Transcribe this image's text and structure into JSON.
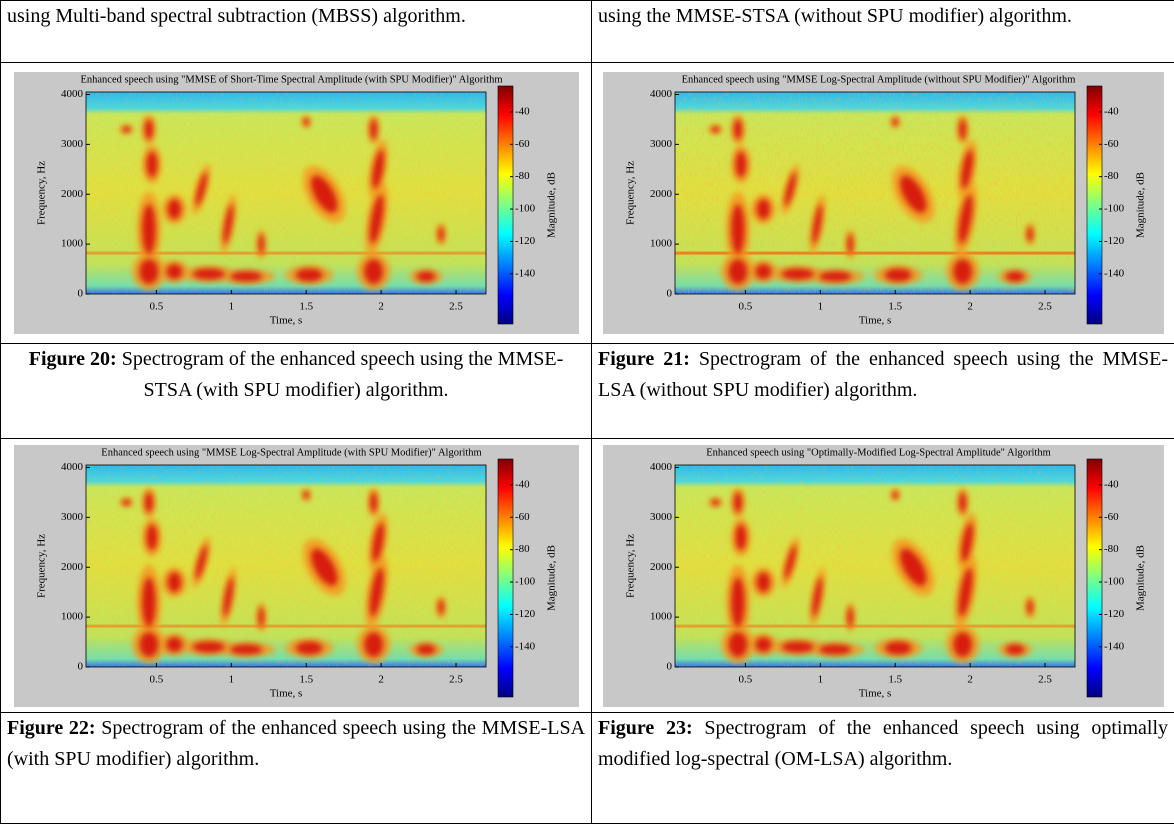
{
  "table": {
    "rows": [
      [
        "using Multi-band spectral subtraction (MBSS) algorithm.",
        "using the MMSE-STSA (without SPU modifier) algorithm."
      ],
      [
        {
          "label": "Figure 20:",
          "text": "Spectrogram of the enhanced speech using the MMSE-STSA (with SPU modifier) algorithm."
        },
        {
          "label": "Figure 21:",
          "text": "Spectrogram of the enhanced speech using the MMSE-LSA (without SPU modifier) algorithm."
        }
      ],
      [
        {
          "label": "Figure 22:",
          "text": "Spectrogram of the enhanced speech using the MMSE-LSA (with SPU modifier) algorithm."
        },
        {
          "label": "Figure 23:",
          "text": "Spectrogram of the enhanced speech using optimally modified log-spectral (OM-LSA) algorithm."
        }
      ]
    ]
  },
  "figures": [
    {
      "title": "Enhanced speech using \"MMSE of Short-Time Spectral Amplitude (with SPU Modifier)\" Algorithm",
      "xlabel": "Time, s",
      "ylabel": "Frequency, Hz",
      "colorbar_label": "Magnitude, dB",
      "xlim": [
        0.03,
        2.7
      ],
      "xticks": [
        0.5,
        1,
        1.5,
        2,
        2.5
      ],
      "ylim": [
        0,
        4050
      ],
      "yticks": [
        0,
        1000,
        2000,
        3000,
        4000
      ],
      "clim": [
        -171,
        -24
      ],
      "cticks": [
        -40,
        -60,
        -80,
        -100,
        -120,
        -140
      ]
    },
    {
      "title": "Enhanced speech using \"MMSE Log-Spectral Amplitude (without SPU Modifier)\" Algorithm",
      "xlabel": "Time, s",
      "ylabel": "Frequency, Hz",
      "colorbar_label": "Magnitude, dB",
      "xlim": [
        0.03,
        2.7
      ],
      "xticks": [
        0.5,
        1,
        1.5,
        2,
        2.5
      ],
      "ylim": [
        0,
        4050
      ],
      "yticks": [
        0,
        1000,
        2000,
        3000,
        4000
      ],
      "clim": [
        -171,
        -24
      ],
      "cticks": [
        -40,
        -60,
        -80,
        -100,
        -120,
        -140
      ]
    },
    {
      "title": "Enhanced speech using \"MMSE Log-Spectral Amplitude (with SPU Modifier)\" Algorithm",
      "xlabel": "Time, s",
      "ylabel": "Frequency, Hz",
      "colorbar_label": "Magnitude, dB",
      "xlim": [
        0.03,
        2.7
      ],
      "xticks": [
        0.5,
        1,
        1.5,
        2,
        2.5
      ],
      "ylim": [
        0,
        4050
      ],
      "yticks": [
        0,
        1000,
        2000,
        3000,
        4000
      ],
      "clim": [
        -171,
        -24
      ],
      "cticks": [
        -40,
        -60,
        -80,
        -100,
        -120,
        -140
      ]
    },
    {
      "title": "Enhanced speech using \"Optimally-Modified Log-Spectral Amplitude\" Algorithm",
      "xlabel": "Time, s",
      "ylabel": "Frequency, Hz",
      "colorbar_label": "Magnitude, dB",
      "xlim": [
        0.03,
        2.7
      ],
      "xticks": [
        0.5,
        1,
        1.5,
        2,
        2.5
      ],
      "ylim": [
        0,
        4050
      ],
      "yticks": [
        0,
        1000,
        2000,
        3000,
        4000
      ],
      "clim": [
        -171,
        -24
      ],
      "cticks": [
        -40,
        -60,
        -80,
        -100,
        -120,
        -140
      ]
    }
  ]
}
